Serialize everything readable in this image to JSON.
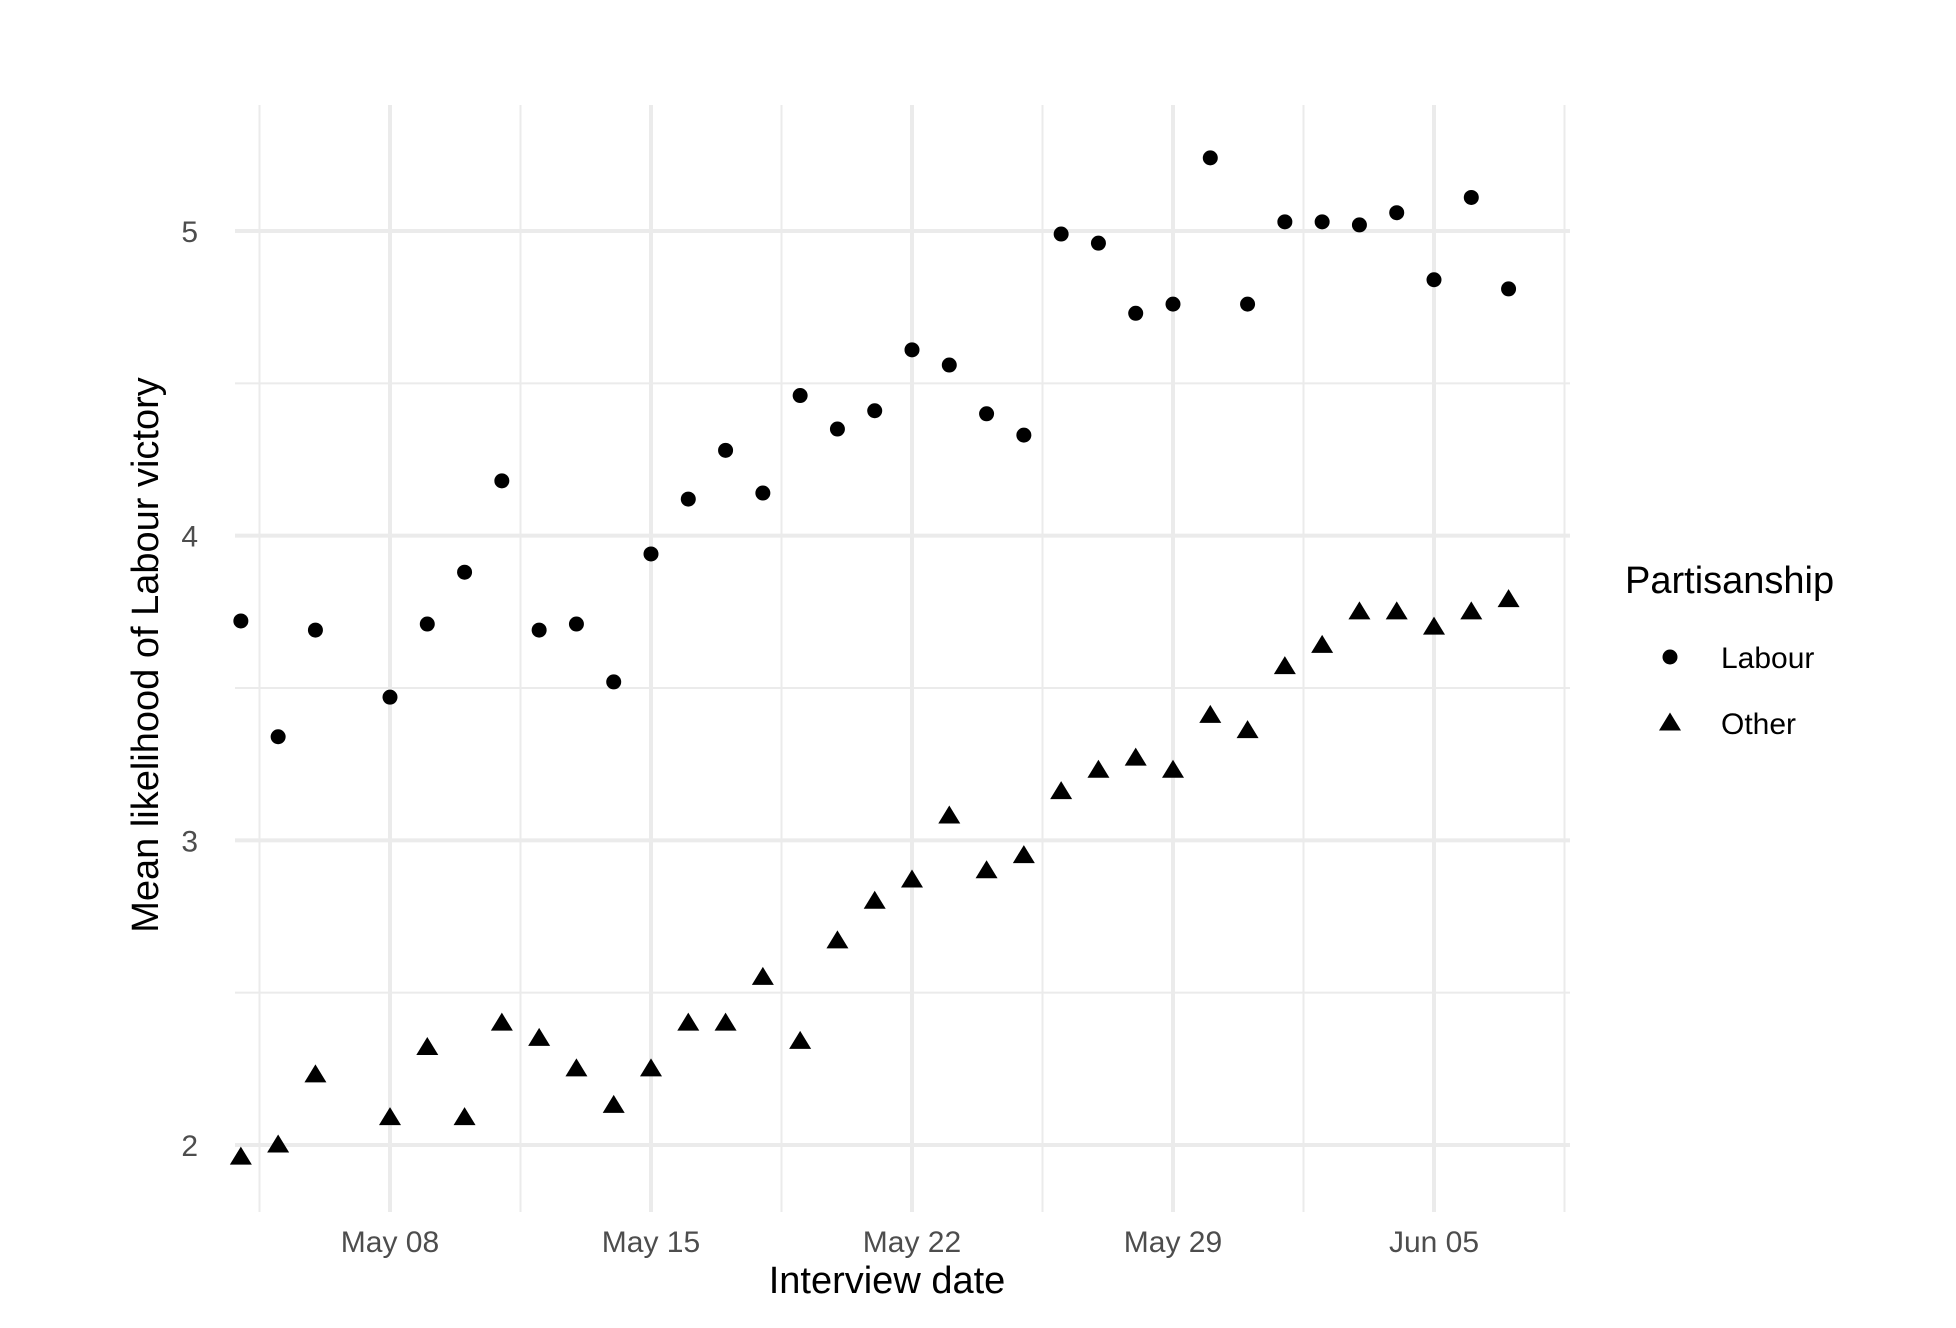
{
  "chart_data": {
    "type": "scatter",
    "xlabel": "Interview date",
    "ylabel": "Mean likelihood of Labour victory",
    "x_tick_labels": [
      "May 08",
      "May 15",
      "May 22",
      "May 29",
      "Jun 05"
    ],
    "x_tick_dates": [
      "05-08",
      "05-15",
      "05-22",
      "05-29",
      "06-05"
    ],
    "y_ticks": [
      2,
      3,
      4,
      5
    ],
    "y_tick_labels": [
      "2",
      "3",
      "4",
      "5"
    ],
    "xlim": [
      "05-04",
      "06-08"
    ],
    "ylim": [
      1.82,
      5.38
    ],
    "grid": true,
    "legend": {
      "title": "Partisanship",
      "position": "right"
    },
    "series": [
      {
        "name": "Labour",
        "shape": "circle",
        "color": "#000000",
        "points": [
          [
            "05-04",
            3.72
          ],
          [
            "05-05",
            3.34
          ],
          [
            "05-06",
            3.69
          ],
          [
            "05-08",
            3.47
          ],
          [
            "05-09",
            3.71
          ],
          [
            "05-10",
            3.88
          ],
          [
            "05-11",
            4.18
          ],
          [
            "05-12",
            3.69
          ],
          [
            "05-13",
            3.71
          ],
          [
            "05-14",
            3.52
          ],
          [
            "05-15",
            3.94
          ],
          [
            "05-16",
            4.12
          ],
          [
            "05-17",
            4.28
          ],
          [
            "05-18",
            4.14
          ],
          [
            "05-19",
            4.46
          ],
          [
            "05-20",
            4.35
          ],
          [
            "05-21",
            4.41
          ],
          [
            "05-22",
            4.61
          ],
          [
            "05-23",
            4.56
          ],
          [
            "05-24",
            4.4
          ],
          [
            "05-25",
            4.33
          ],
          [
            "05-26",
            4.99
          ],
          [
            "05-27",
            4.96
          ],
          [
            "05-28",
            4.73
          ],
          [
            "05-29",
            4.76
          ],
          [
            "05-30",
            5.24
          ],
          [
            "05-31",
            4.76
          ],
          [
            "06-01",
            5.03
          ],
          [
            "06-02",
            5.03
          ],
          [
            "06-03",
            5.02
          ],
          [
            "06-04",
            5.06
          ],
          [
            "06-05",
            4.84
          ],
          [
            "06-06",
            5.11
          ],
          [
            "06-07",
            4.81
          ]
        ]
      },
      {
        "name": "Other",
        "shape": "triangle",
        "color": "#000000",
        "points": [
          [
            "05-04",
            1.96
          ],
          [
            "05-05",
            2.0
          ],
          [
            "05-06",
            2.23
          ],
          [
            "05-08",
            2.09
          ],
          [
            "05-09",
            2.32
          ],
          [
            "05-10",
            2.09
          ],
          [
            "05-11",
            2.4
          ],
          [
            "05-12",
            2.35
          ],
          [
            "05-13",
            2.25
          ],
          [
            "05-14",
            2.13
          ],
          [
            "05-15",
            2.25
          ],
          [
            "05-16",
            2.4
          ],
          [
            "05-17",
            2.4
          ],
          [
            "05-18",
            2.55
          ],
          [
            "05-19",
            2.34
          ],
          [
            "05-20",
            2.67
          ],
          [
            "05-21",
            2.8
          ],
          [
            "05-22",
            2.87
          ],
          [
            "05-23",
            3.08
          ],
          [
            "05-24",
            2.9
          ],
          [
            "05-25",
            2.95
          ],
          [
            "05-26",
            3.16
          ],
          [
            "05-27",
            3.23
          ],
          [
            "05-28",
            3.27
          ],
          [
            "05-29",
            3.23
          ],
          [
            "05-30",
            3.41
          ],
          [
            "05-31",
            3.36
          ],
          [
            "06-01",
            3.57
          ],
          [
            "06-02",
            3.64
          ],
          [
            "06-03",
            3.75
          ],
          [
            "06-04",
            3.75
          ],
          [
            "06-05",
            3.7
          ],
          [
            "06-06",
            3.75
          ],
          [
            "06-07",
            3.79
          ]
        ]
      }
    ]
  }
}
